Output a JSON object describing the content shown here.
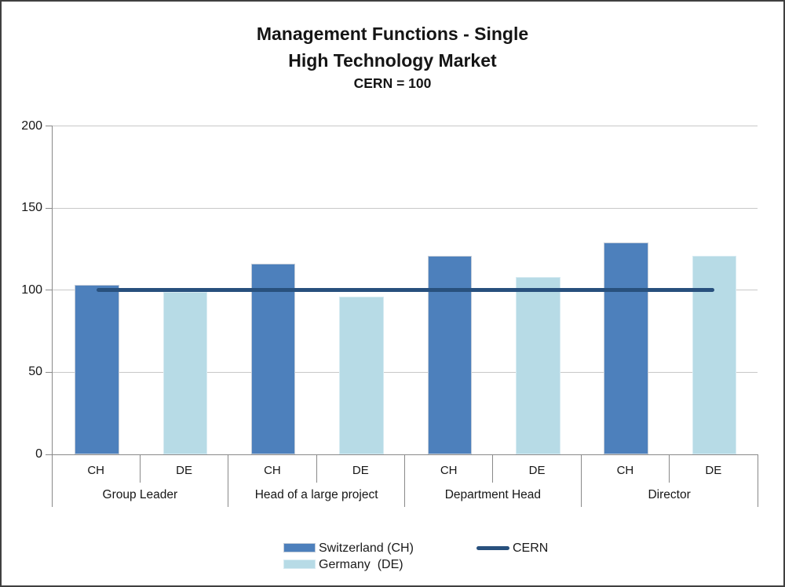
{
  "title": {
    "line1": "Management Functions - Single",
    "line2": "High Technology Market",
    "line3": "CERN = 100"
  },
  "chart_data": {
    "type": "bar",
    "title": "Management Functions - Single High Technology Market",
    "subtitle": "CERN = 100",
    "categories": [
      "Group Leader",
      "Head of a large project",
      "Department Head",
      "Director"
    ],
    "sub_categories": [
      "CH",
      "DE"
    ],
    "series": [
      {
        "name": "Switzerland (CH)",
        "color": "#4d80bc",
        "border_color": "#c4cdd9",
        "values": [
          103,
          116,
          121,
          129
        ]
      },
      {
        "name": "Germany  (DE)",
        "color": "#b7dbe6",
        "border_color": "#d7ebf2",
        "values": [
          99,
          96,
          108,
          121
        ]
      }
    ],
    "reference_line": {
      "name": "CERN",
      "value": 100,
      "color": "#28507d"
    },
    "y_axis": {
      "min": 0,
      "max": 200,
      "ticks": [
        0,
        50,
        100,
        150,
        200
      ]
    },
    "grid": true,
    "legend_position": "bottom-center"
  },
  "style": {
    "background": "#ffffff",
    "frame_border_color": "#3f3f3f",
    "gridline_color": "#c8c8c8",
    "axis_color": "#898989",
    "text_color": "#161616"
  }
}
